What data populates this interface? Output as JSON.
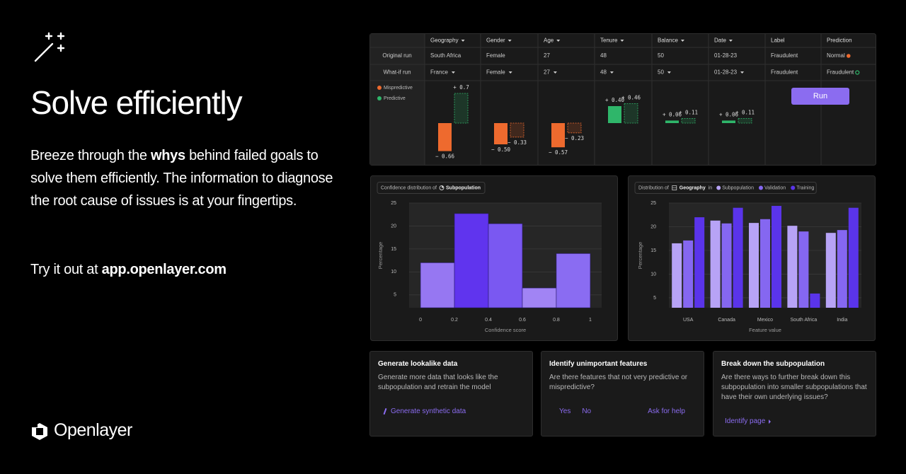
{
  "hero": {
    "title": "Solve efficiently",
    "body": [
      "Breeze through the ",
      "whys",
      " behind failed goals to solve them efficiently. The information to diagnose the root cause of issues is at your fingertips."
    ],
    "cta": [
      "Try it out at ",
      "app.openlayer.com"
    ],
    "brand": "Openlayer"
  },
  "table": {
    "header": [
      "Geography",
      "Gender",
      "Age",
      "Tenure",
      "Balance",
      "Date",
      "Label",
      "Prediction"
    ],
    "rows": [
      {
        "name": "Original run",
        "cells": [
          "South Africa",
          "Female",
          "27",
          "48",
          "50",
          "01-28-23",
          "Fraudulent",
          "Normal"
        ]
      },
      {
        "name": "What-if run",
        "cells": [
          "France",
          "Female",
          "27",
          "48",
          "50",
          "01-28-23",
          "Fraudulent",
          "Fraudulent"
        ]
      }
    ]
  },
  "run_button": "Run",
  "chart_data": [
    {
      "type": "impact",
      "legend": [
        {
          "label": "Mispredictive",
          "color": "#ee6a2e"
        },
        {
          "label": "Predictive",
          "color": "#2fb66a"
        }
      ],
      "bars": [
        {
          "values": [
            -0.66,
            0.7
          ],
          "value_labels": [
            "− 0.66",
            "+ 0.7"
          ]
        },
        {
          "values": [
            -0.5,
            -0.33
          ],
          "value_labels": [
            "− 0.50",
            "− 0.33"
          ]
        },
        {
          "values": [
            -0.57,
            -0.23
          ],
          "value_labels": [
            "− 0.57",
            "− 0.23"
          ]
        },
        {
          "values": [
            0.4,
            0.46
          ],
          "value_labels": [
            "+ 0.40",
            "+ 0.46"
          ]
        },
        {
          "values": [
            0.06,
            0.11
          ],
          "value_labels": [
            "+ 0.06",
            "+ 0.11"
          ]
        },
        {
          "values": [
            0.06,
            0.11
          ],
          "value_labels": [
            "+ 0.06",
            "+ 0.11"
          ]
        }
      ]
    },
    {
      "type": "histogram",
      "title": "Confidence distribution of",
      "title_chip": "Subpopulation",
      "bins": [
        0,
        0.2,
        0.4,
        0.6,
        0.8,
        1
      ],
      "values": [
        12,
        22.7,
        20.5,
        6.5,
        14
      ],
      "colors": [
        "#9677f2",
        "#6034ee",
        "#7a58f1",
        "#a184f4",
        "#8a6cf2"
      ],
      "xlim": [
        -0.067,
        1.067
      ],
      "xticks": [
        0,
        0.2,
        0.4,
        0.6,
        0.8,
        1
      ],
      "ylim": [
        2.2,
        25
      ],
      "yticks": [
        5,
        10,
        15,
        20,
        25
      ],
      "xlabel": "Confidence score",
      "ylabel": "Percentage",
      "grid": true
    },
    {
      "type": "grouped-bar",
      "title": "Distribution of",
      "title_field": "Geography",
      "title_in": "in",
      "categories": [
        "USA",
        "Canada",
        "Mexico",
        "South Africa",
        "India"
      ],
      "series": [
        {
          "name": "Subpopulation",
          "color": "#b7a3f6",
          "values": [
            16.5,
            21.3,
            20.8,
            20.2,
            18.7
          ]
        },
        {
          "name": "Validation",
          "color": "#8567f1",
          "values": [
            17.1,
            20.7,
            21.6,
            19.0,
            19.3
          ]
        },
        {
          "name": "Training",
          "color": "#5a34ea",
          "values": [
            22.0,
            24.0,
            24.4,
            5.9,
            24.0
          ]
        }
      ],
      "ylim": [
        2.9,
        25
      ],
      "yticks": [
        5,
        10,
        15,
        20,
        25
      ],
      "xlabel": "Feature value",
      "ylabel": "Percentage",
      "grid": true
    }
  ],
  "cards": [
    {
      "title": "Generate lookalike data",
      "body": "Generate more data that looks like the subpopulation and retrain the model",
      "actions": [
        "Generate synthetic data"
      ]
    },
    {
      "title": "Identify unimportant features",
      "body": "Are there features that not very predictive or mispredictive?",
      "actions": [
        "Yes",
        "No",
        "Ask for help"
      ]
    },
    {
      "title": "Break down the subpopulation",
      "body": "Are there ways to further break down this subpopulation into smaller subpopulations that have their own underlying issues?",
      "actions": [
        "Identify page"
      ]
    }
  ]
}
